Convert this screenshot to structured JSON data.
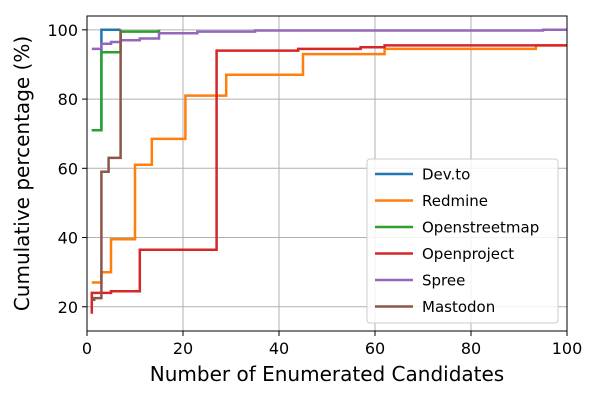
{
  "chart_data": {
    "type": "line",
    "step": true,
    "xlabel": "Number of Enumerated Candidates",
    "ylabel": "Cumulative percentage (%)",
    "xlim": [
      0,
      100
    ],
    "ylim": [
      13,
      104
    ],
    "xticks": [
      0,
      20,
      40,
      60,
      80,
      100
    ],
    "yticks": [
      20,
      40,
      60,
      80,
      100
    ],
    "grid": true,
    "legend_position": "lower-right",
    "series": [
      {
        "name": "Dev.to",
        "color": "#1f77b4",
        "points": [
          [
            1,
            71
          ],
          [
            3,
            71
          ],
          [
            3,
            100
          ],
          [
            7,
            100
          ]
        ]
      },
      {
        "name": "Redmine",
        "color": "#ff7f0e",
        "points": [
          [
            1,
            27
          ],
          [
            3,
            27
          ],
          [
            3,
            30
          ],
          [
            5,
            30
          ],
          [
            5,
            39.5
          ],
          [
            10,
            39.5
          ],
          [
            10,
            61
          ],
          [
            13.5,
            61
          ],
          [
            13.5,
            68.5
          ],
          [
            20.5,
            68.5
          ],
          [
            20.5,
            81
          ],
          [
            29,
            81
          ],
          [
            29,
            87
          ],
          [
            45,
            87
          ],
          [
            45,
            93
          ],
          [
            62,
            93
          ],
          [
            62,
            94.5
          ],
          [
            93.5,
            94.5
          ],
          [
            93.5,
            95.5
          ],
          [
            100,
            95.5
          ]
        ]
      },
      {
        "name": "Openstreetmap",
        "color": "#2ca02c",
        "points": [
          [
            1,
            71
          ],
          [
            3,
            71
          ],
          [
            3,
            93.5
          ],
          [
            7,
            93.5
          ],
          [
            7,
            99.5
          ],
          [
            15,
            99.5
          ],
          [
            15,
            100
          ]
        ]
      },
      {
        "name": "Openproject",
        "color": "#d62728",
        "points": [
          [
            1,
            18
          ],
          [
            1,
            24
          ],
          [
            5,
            24
          ],
          [
            5,
            24.5
          ],
          [
            11,
            24.5
          ],
          [
            11,
            36.5
          ],
          [
            27,
            36.5
          ],
          [
            27,
            94
          ],
          [
            44,
            94
          ],
          [
            44,
            94.5
          ],
          [
            57,
            94.5
          ],
          [
            57,
            95
          ],
          [
            62,
            95
          ],
          [
            62,
            95.5
          ],
          [
            100,
            95.5
          ]
        ]
      },
      {
        "name": "Spree",
        "color": "#9467bd",
        "points": [
          [
            1,
            94.5
          ],
          [
            3,
            94.5
          ],
          [
            3,
            96
          ],
          [
            5,
            96
          ],
          [
            5,
            96.5
          ],
          [
            7,
            96.5
          ],
          [
            7,
            97
          ],
          [
            11,
            97
          ],
          [
            11,
            97.5
          ],
          [
            15,
            97.5
          ],
          [
            15,
            99
          ],
          [
            23,
            99
          ],
          [
            23,
            99.5
          ],
          [
            35,
            99.5
          ],
          [
            35,
            99.8
          ],
          [
            95,
            99.8
          ],
          [
            95,
            100
          ],
          [
            100,
            100
          ]
        ]
      },
      {
        "name": "Mastodon",
        "color": "#8c564b",
        "points": [
          [
            1,
            22
          ],
          [
            1.5,
            22
          ],
          [
            1.5,
            22.5
          ],
          [
            3,
            22.5
          ],
          [
            3,
            59
          ],
          [
            4.5,
            59
          ],
          [
            4.5,
            63
          ],
          [
            7,
            63
          ],
          [
            7,
            100
          ]
        ]
      }
    ]
  }
}
